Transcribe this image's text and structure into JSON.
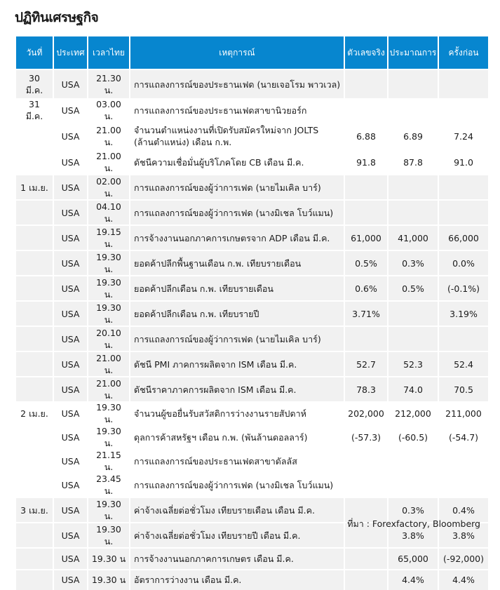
{
  "title": "ปฏิทินเศรษฐกิจ",
  "headers": [
    "วันที่",
    "ประเทศ",
    "เวลาไทย",
    "เหตุการณ์",
    "ตัวเลขจริง",
    "ประมาณการ",
    "ครั้งก่อน"
  ],
  "rows": [
    {
      "date": "30 มี.ค.",
      "country": "USA",
      "time": "21.30 น.",
      "event": "การแถลงการณ์ของประธานเฟด (นายเจอโรม พาวเวล)",
      "actual": "",
      "forecast": "",
      "previous": "",
      "group": 0,
      "lines": 2
    },
    {
      "date": "31 มี.ค.",
      "country": "USA",
      "time": "03.00 น.",
      "event": "การแถลงการณ์ของประธานเฟดสาขานิวยอร์ก",
      "actual": "",
      "forecast": "",
      "previous": "",
      "group": 1,
      "lines": 1
    },
    {
      "date": "",
      "country": "USA",
      "time": "21.00 น.",
      "event": "จำนวนตำแหน่งงานที่เปิดรับสมัครใหม่จาก JOLTS (ล้านตำแหน่ง) เดือน ก.พ.",
      "actual": "6.88",
      "forecast": "6.89",
      "previous": "7.24",
      "group": 1,
      "lines": 2
    },
    {
      "date": "",
      "country": "USA",
      "time": "21.00 น.",
      "event": "ดัชนีความเชื่อมั่นผู้บริโภคโดย CB เดือน มี.ค.",
      "actual": "91.8",
      "forecast": "87.8",
      "previous": "91.0",
      "group": 1,
      "lines": 1
    },
    {
      "date": "1 เม.ย.",
      "country": "USA",
      "time": "02.00 น.",
      "event": "การแถลงการณ์ของผู้ว่าการเฟด (นายไมเคิล บาร์)",
      "actual": "",
      "forecast": "",
      "previous": "",
      "group": 2,
      "lines": 1
    },
    {
      "date": "",
      "country": "USA",
      "time": "04.10 น.",
      "event": "การแถลงการณ์ของผู้ว่าการเฟด (นางมิเชล โบว์แมน)",
      "actual": "",
      "forecast": "",
      "previous": "",
      "group": 2,
      "lines": 1
    },
    {
      "date": "",
      "country": "USA",
      "time": "19.15 น.",
      "event": "การจ้างงานนอกภาคการเกษตรจาก ADP เดือน มี.ค.",
      "actual": "61,000",
      "forecast": "41,000",
      "previous": "66,000",
      "group": 2,
      "lines": 1
    },
    {
      "date": "",
      "country": "USA",
      "time": "19.30 น.",
      "event": "ยอดค้าปลีกพื้นฐานเดือน ก.พ. เทียบรายเดือน",
      "actual": "0.5%",
      "forecast": "0.3%",
      "previous": "0.0%",
      "group": 2,
      "lines": 1
    },
    {
      "date": "",
      "country": "USA",
      "time": "19.30 น.",
      "event": "ยอดค้าปลีกเดือน ก.พ. เทียบรายเดือน",
      "actual": "0.6%",
      "forecast": "0.5%",
      "previous": "(-0.1%)",
      "group": 2,
      "lines": 1
    },
    {
      "date": "",
      "country": "USA",
      "time": "19.30 น.",
      "event": "ยอดค้าปลีกเดือน ก.พ. เทียบรายปี",
      "actual": "3.71%",
      "forecast": "",
      "previous": "3.19%",
      "group": 2,
      "lines": 1
    },
    {
      "date": "",
      "country": "USA",
      "time": "20.10 น.",
      "event": "การแถลงการณ์ของผู้ว่าการเฟด (นายไมเคิล บาร์)",
      "actual": "",
      "forecast": "",
      "previous": "",
      "group": 2,
      "lines": 1
    },
    {
      "date": "",
      "country": "USA",
      "time": "21.00 น.",
      "event": "ดัชนี PMI ภาคการผลิตจาก ISM เดือน มี.ค.",
      "actual": "52.7",
      "forecast": "52.3",
      "previous": "52.4",
      "group": 2,
      "lines": 1
    },
    {
      "date": "",
      "country": "USA",
      "time": "21.00 น.",
      "event": "ดัชนีราคาภาคการผลิตจาก ISM เดือน มี.ค.",
      "actual": "78.3",
      "forecast": "74.0",
      "previous": "70.5",
      "group": 2,
      "lines": 1
    },
    {
      "date": "2 เม.ย.",
      "country": "USA",
      "time": "19.30 น.",
      "event": "จำนวนผู้ขอยื่นรับสวัสดิการว่างงานรายสัปดาห์",
      "actual": "202,000",
      "forecast": "212,000",
      "previous": "211,000",
      "group": 3,
      "lines": 1
    },
    {
      "date": "",
      "country": "USA",
      "time": "19.30 น.",
      "event": "ดุลการค้าสหรัฐฯ เดือน ก.พ. (พันล้านดอลลาร์)",
      "actual": "(-57.3)",
      "forecast": "(-60.5)",
      "previous": "(-54.7)",
      "group": 3,
      "lines": 1
    },
    {
      "date": "",
      "country": "USA",
      "time": "21.15 น.",
      "event": "การแถลงการณ์ของประธานเฟดสาขาดัลลัส",
      "actual": "",
      "forecast": "",
      "previous": "",
      "group": 3,
      "lines": 1
    },
    {
      "date": "",
      "country": "USA",
      "time": "23.45 น.",
      "event": "การแถลงการณ์ของผู้ว่าการเฟด (นางมิเชล โบว์แมน)",
      "actual": "",
      "forecast": "",
      "previous": "",
      "group": 3,
      "lines": 1
    },
    {
      "date": "3 เม.ย.",
      "country": "USA",
      "time": "19.30 น.",
      "event": "ค่าจ้างเฉลี่ยต่อชั่วโมง เทียบรายเดือน เดือน มี.ค.",
      "actual": "",
      "forecast": "0.3%",
      "previous": "0.4%",
      "group": 4,
      "lines": 1
    },
    {
      "date": "",
      "country": "USA",
      "time": "19.30 น.",
      "event": "ค่าจ้างเฉลี่ยต่อชั่วโมง เทียบรายปี เดือน มี.ค.",
      "actual": "",
      "forecast": "3.8%",
      "previous": "3.8%",
      "group": 4,
      "lines": 1
    },
    {
      "date": "",
      "country": "USA",
      "time": "19.30 น",
      "event": "การจ้างงานนอกภาคการเกษตร เดือน มี.ค.",
      "actual": "",
      "forecast": "65,000",
      "previous": "(-92,000)",
      "group": 4,
      "lines": 1
    },
    {
      "date": "",
      "country": "USA",
      "time": "19.30 น",
      "event": "อัตราการว่างงาน เดือน มี.ค.",
      "actual": "",
      "forecast": "4.4%",
      "previous": "4.4%",
      "group": 4,
      "lines": 1
    }
  ],
  "source": "ที่มา : Forexfactory, Bloomberg"
}
